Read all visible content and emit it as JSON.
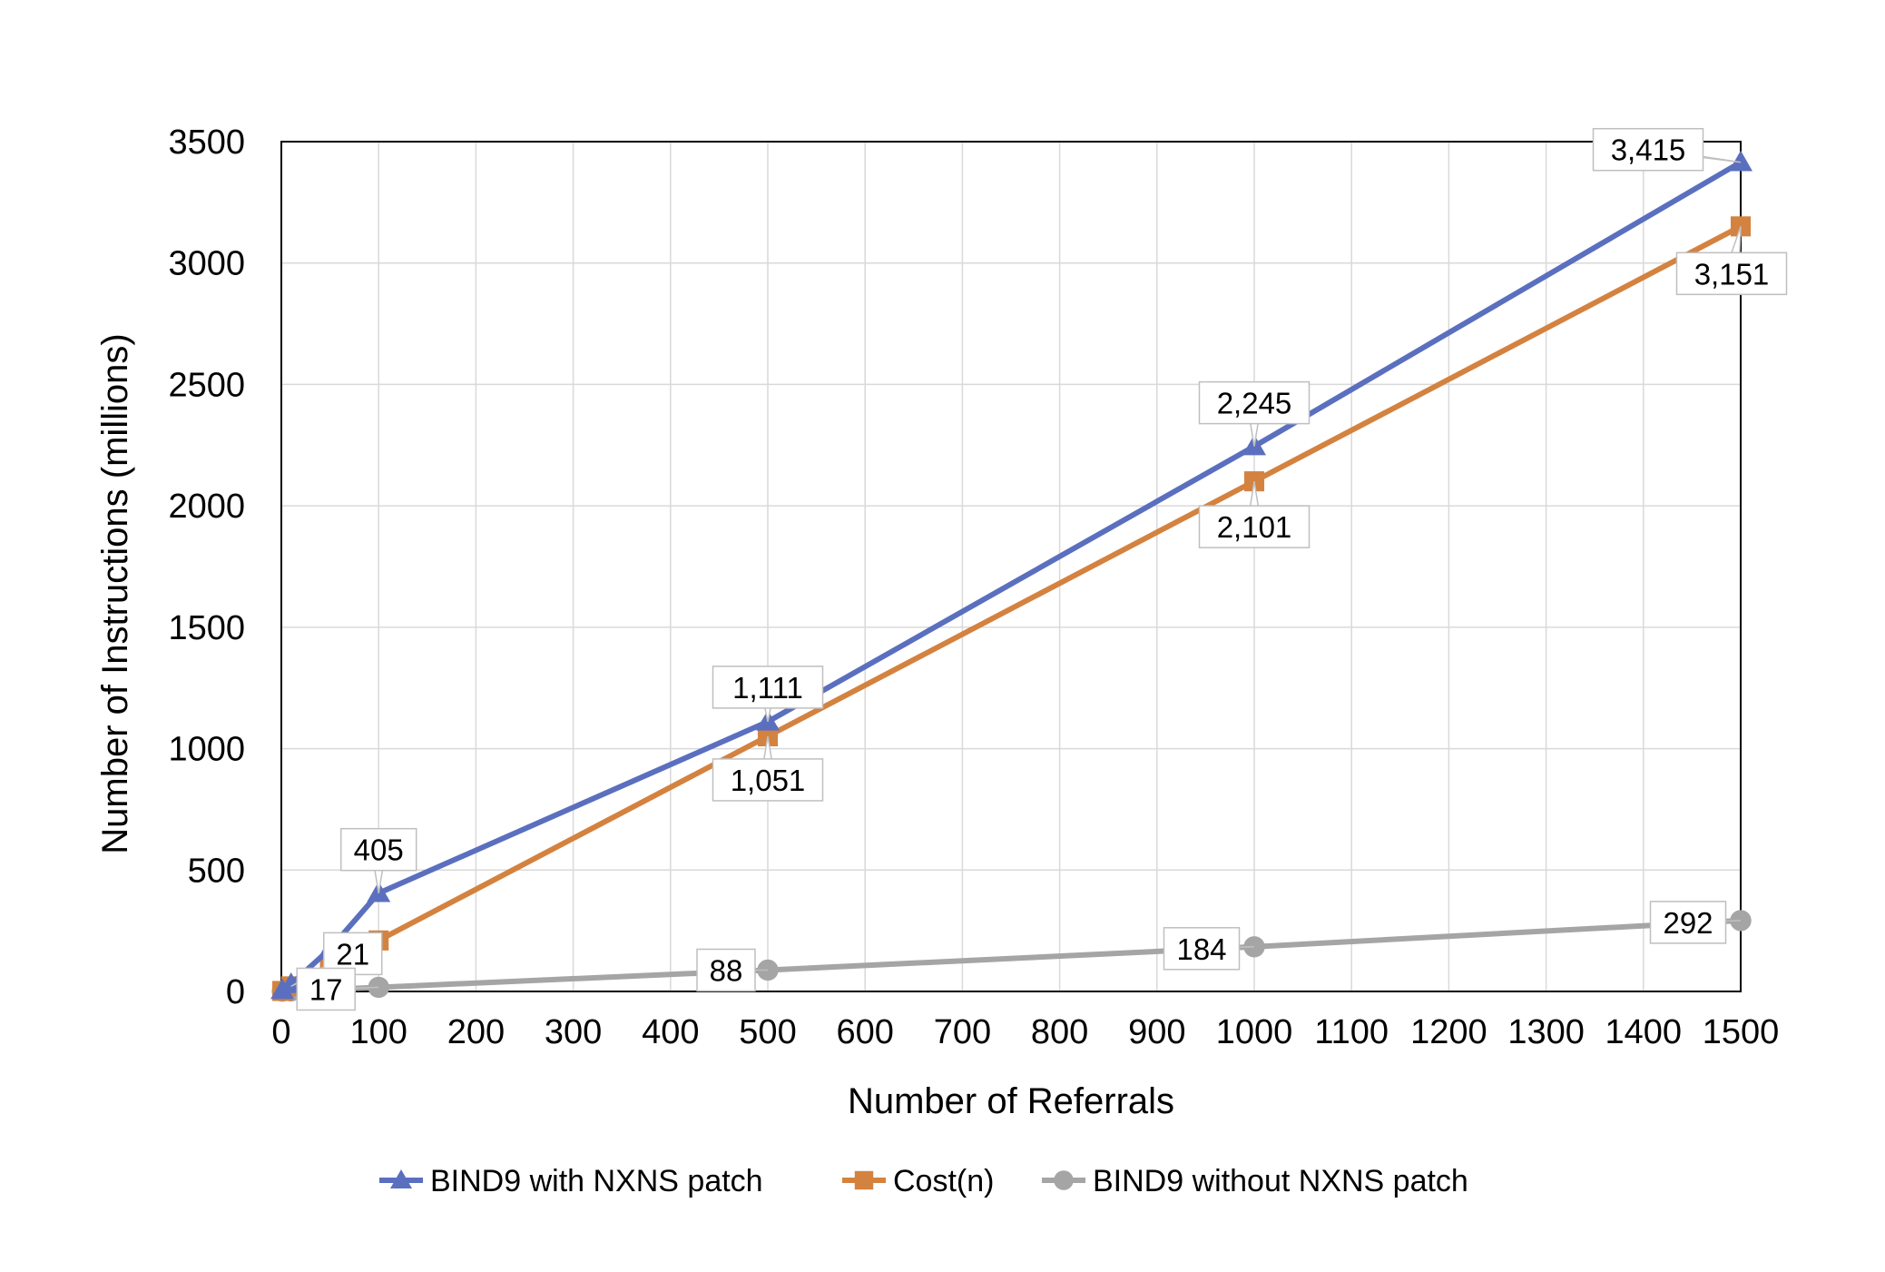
{
  "chart_data": {
    "type": "line",
    "xlabel": "Number of Referrals",
    "ylabel": "Number of Instructions (millions)",
    "xlim": [
      0,
      1500
    ],
    "ylim": [
      0,
      3500
    ],
    "x_ticks": [
      "0",
      "100",
      "200",
      "300",
      "400",
      "500",
      "600",
      "700",
      "800",
      "900",
      "1000",
      "1100",
      "1200",
      "1300",
      "1400",
      "1500"
    ],
    "y_ticks": [
      "0",
      "500",
      "1000",
      "1500",
      "2000",
      "2500",
      "3000",
      "3500"
    ],
    "grid": true,
    "legend_position": "bottom",
    "series": [
      {
        "name": "BIND9 with NXNS patch",
        "color": "#5b6fbf",
        "marker": "triangle",
        "x": [
          1,
          10,
          50,
          100,
          500,
          1000,
          1500
        ],
        "y": [
          5,
          30,
          175,
          405,
          1111,
          2245,
          3415
        ],
        "labels": [
          {
            "x": 100,
            "y": 405,
            "text": "405"
          },
          {
            "x": 500,
            "y": 1111,
            "text": "1,111"
          },
          {
            "x": 1000,
            "y": 2245,
            "text": "2,245"
          },
          {
            "x": 1500,
            "y": 3415,
            "text": "3,415"
          }
        ]
      },
      {
        "name": "Cost(n)",
        "color": "#d4823f",
        "marker": "square",
        "x": [
          1,
          10,
          50,
          100,
          500,
          1000,
          1500
        ],
        "y": [
          2,
          21,
          105,
          210,
          1051,
          2101,
          3151
        ],
        "labels": [
          {
            "x": 10,
            "y": 21,
            "text": "21"
          },
          {
            "x": 500,
            "y": 1051,
            "text": "1,051"
          },
          {
            "x": 1000,
            "y": 2101,
            "text": "2,101"
          },
          {
            "x": 1500,
            "y": 3151,
            "text": "3,151"
          }
        ]
      },
      {
        "name": "BIND9 without NXNS patch",
        "color": "#a5a5a5",
        "marker": "circle",
        "x": [
          1,
          10,
          100,
          500,
          1000,
          1500
        ],
        "y": [
          1,
          2,
          17,
          88,
          184,
          292
        ],
        "labels": [
          {
            "x": 100,
            "y": 17,
            "text": "17"
          },
          {
            "x": 500,
            "y": 88,
            "text": "88"
          },
          {
            "x": 1000,
            "y": 184,
            "text": "184"
          },
          {
            "x": 1500,
            "y": 292,
            "text": "292"
          }
        ]
      }
    ]
  }
}
